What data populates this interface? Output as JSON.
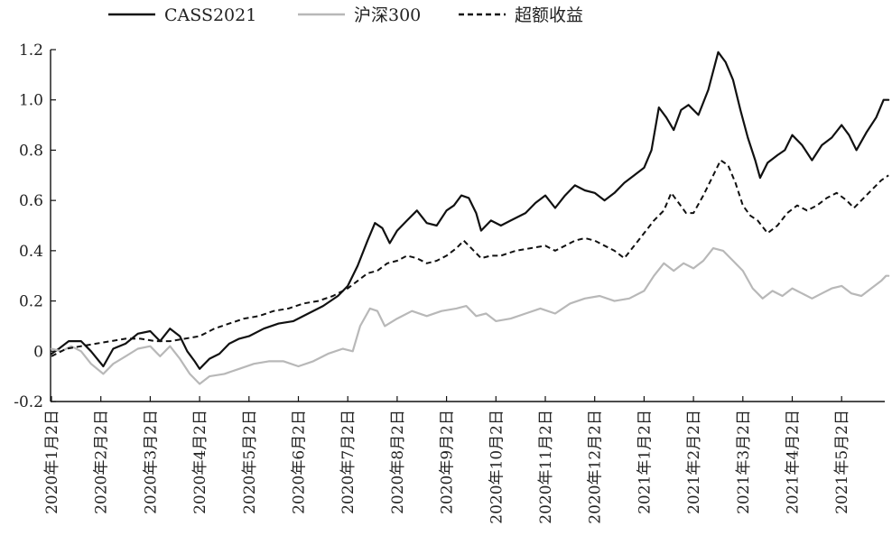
{
  "chart_data": {
    "type": "line",
    "legend": {
      "placement": "top"
    },
    "grid": false,
    "ylim": [
      -0.2,
      1.2
    ],
    "yticks": [
      "1.2",
      "1.0",
      "0.8",
      "0.6",
      "0.4",
      "0.2",
      "0",
      "-0.2"
    ],
    "ytick_values": [
      1.2,
      1.0,
      0.8,
      0.6,
      0.4,
      0.2,
      0.0,
      -0.2
    ],
    "categories": [
      "2020年1月2日",
      "2020年2月2日",
      "2020年3月2日",
      "2020年4月2日",
      "2020年5月2日",
      "2020年6月2日",
      "2020年7月2日",
      "2020年8月2日",
      "2020年9月2日",
      "2020年10月2日",
      "2020年11月2日",
      "2020年12月2日",
      "2021年1月2日",
      "2021年2月2日",
      "2021年3月2日",
      "2021年4月2日",
      "2021年5月2日"
    ],
    "x_end": 16.95,
    "series": [
      {
        "name": "CASS2021",
        "color": "#111111",
        "style": "solid",
        "points": [
          [
            0.0,
            -0.01
          ],
          [
            0.15,
            0.01
          ],
          [
            0.35,
            0.04
          ],
          [
            0.6,
            0.04
          ],
          [
            0.8,
            0.0
          ],
          [
            1.05,
            -0.06
          ],
          [
            1.25,
            0.01
          ],
          [
            1.5,
            0.03
          ],
          [
            1.75,
            0.07
          ],
          [
            2.0,
            0.08
          ],
          [
            2.2,
            0.04
          ],
          [
            2.4,
            0.09
          ],
          [
            2.6,
            0.06
          ],
          [
            2.75,
            0.0
          ],
          [
            2.9,
            -0.04
          ],
          [
            3.0,
            -0.07
          ],
          [
            3.2,
            -0.03
          ],
          [
            3.4,
            -0.01
          ],
          [
            3.6,
            0.03
          ],
          [
            3.8,
            0.05
          ],
          [
            4.0,
            0.06
          ],
          [
            4.3,
            0.09
          ],
          [
            4.6,
            0.11
          ],
          [
            4.9,
            0.12
          ],
          [
            5.2,
            0.15
          ],
          [
            5.5,
            0.18
          ],
          [
            5.8,
            0.22
          ],
          [
            6.0,
            0.26
          ],
          [
            6.2,
            0.34
          ],
          [
            6.4,
            0.44
          ],
          [
            6.55,
            0.51
          ],
          [
            6.7,
            0.49
          ],
          [
            6.85,
            0.43
          ],
          [
            7.0,
            0.48
          ],
          [
            7.2,
            0.52
          ],
          [
            7.4,
            0.56
          ],
          [
            7.6,
            0.51
          ],
          [
            7.8,
            0.5
          ],
          [
            8.0,
            0.56
          ],
          [
            8.15,
            0.58
          ],
          [
            8.3,
            0.62
          ],
          [
            8.45,
            0.61
          ],
          [
            8.6,
            0.55
          ],
          [
            8.7,
            0.48
          ],
          [
            8.9,
            0.52
          ],
          [
            9.1,
            0.5
          ],
          [
            9.3,
            0.52
          ],
          [
            9.6,
            0.55
          ],
          [
            9.8,
            0.59
          ],
          [
            10.0,
            0.62
          ],
          [
            10.2,
            0.57
          ],
          [
            10.4,
            0.62
          ],
          [
            10.6,
            0.66
          ],
          [
            10.8,
            0.64
          ],
          [
            11.0,
            0.63
          ],
          [
            11.2,
            0.6
          ],
          [
            11.4,
            0.63
          ],
          [
            11.6,
            0.67
          ],
          [
            11.8,
            0.7
          ],
          [
            12.0,
            0.73
          ],
          [
            12.15,
            0.8
          ],
          [
            12.3,
            0.97
          ],
          [
            12.45,
            0.93
          ],
          [
            12.6,
            0.88
          ],
          [
            12.75,
            0.96
          ],
          [
            12.9,
            0.98
          ],
          [
            13.1,
            0.94
          ],
          [
            13.3,
            1.04
          ],
          [
            13.5,
            1.19
          ],
          [
            13.65,
            1.15
          ],
          [
            13.8,
            1.08
          ],
          [
            13.95,
            0.96
          ],
          [
            14.1,
            0.85
          ],
          [
            14.25,
            0.76
          ],
          [
            14.35,
            0.69
          ],
          [
            14.5,
            0.75
          ],
          [
            14.7,
            0.78
          ],
          [
            14.85,
            0.8
          ],
          [
            15.0,
            0.86
          ],
          [
            15.2,
            0.82
          ],
          [
            15.4,
            0.76
          ],
          [
            15.6,
            0.82
          ],
          [
            15.8,
            0.85
          ],
          [
            16.0,
            0.9
          ],
          [
            16.15,
            0.86
          ],
          [
            16.3,
            0.8
          ],
          [
            16.5,
            0.87
          ],
          [
            16.7,
            0.93
          ],
          [
            16.85,
            1.0
          ],
          [
            16.95,
            1.0
          ]
        ]
      },
      {
        "name": "沪深300",
        "color": "#b8b8b8",
        "style": "solid",
        "points": [
          [
            0.0,
            0.01
          ],
          [
            0.2,
            0.0
          ],
          [
            0.4,
            0.02
          ],
          [
            0.6,
            0.0
          ],
          [
            0.8,
            -0.05
          ],
          [
            1.05,
            -0.09
          ],
          [
            1.25,
            -0.05
          ],
          [
            1.5,
            -0.02
          ],
          [
            1.75,
            0.01
          ],
          [
            2.0,
            0.02
          ],
          [
            2.2,
            -0.02
          ],
          [
            2.4,
            0.02
          ],
          [
            2.6,
            -0.03
          ],
          [
            2.8,
            -0.09
          ],
          [
            3.0,
            -0.13
          ],
          [
            3.2,
            -0.1
          ],
          [
            3.5,
            -0.09
          ],
          [
            3.8,
            -0.07
          ],
          [
            4.1,
            -0.05
          ],
          [
            4.4,
            -0.04
          ],
          [
            4.7,
            -0.04
          ],
          [
            5.0,
            -0.06
          ],
          [
            5.3,
            -0.04
          ],
          [
            5.6,
            -0.01
          ],
          [
            5.9,
            0.01
          ],
          [
            6.1,
            0.0
          ],
          [
            6.25,
            0.1
          ],
          [
            6.45,
            0.17
          ],
          [
            6.6,
            0.16
          ],
          [
            6.75,
            0.1
          ],
          [
            7.0,
            0.13
          ],
          [
            7.3,
            0.16
          ],
          [
            7.6,
            0.14
          ],
          [
            7.9,
            0.16
          ],
          [
            8.2,
            0.17
          ],
          [
            8.4,
            0.18
          ],
          [
            8.6,
            0.14
          ],
          [
            8.8,
            0.15
          ],
          [
            9.0,
            0.12
          ],
          [
            9.3,
            0.13
          ],
          [
            9.6,
            0.15
          ],
          [
            9.9,
            0.17
          ],
          [
            10.2,
            0.15
          ],
          [
            10.5,
            0.19
          ],
          [
            10.8,
            0.21
          ],
          [
            11.1,
            0.22
          ],
          [
            11.4,
            0.2
          ],
          [
            11.7,
            0.21
          ],
          [
            12.0,
            0.24
          ],
          [
            12.2,
            0.3
          ],
          [
            12.4,
            0.35
          ],
          [
            12.6,
            0.32
          ],
          [
            12.8,
            0.35
          ],
          [
            13.0,
            0.33
          ],
          [
            13.2,
            0.36
          ],
          [
            13.4,
            0.41
          ],
          [
            13.6,
            0.4
          ],
          [
            13.8,
            0.36
          ],
          [
            14.0,
            0.32
          ],
          [
            14.2,
            0.25
          ],
          [
            14.4,
            0.21
          ],
          [
            14.6,
            0.24
          ],
          [
            14.8,
            0.22
          ],
          [
            15.0,
            0.25
          ],
          [
            15.2,
            0.23
          ],
          [
            15.4,
            0.21
          ],
          [
            15.6,
            0.23
          ],
          [
            15.8,
            0.25
          ],
          [
            16.0,
            0.26
          ],
          [
            16.2,
            0.23
          ],
          [
            16.4,
            0.22
          ],
          [
            16.6,
            0.25
          ],
          [
            16.8,
            0.28
          ],
          [
            16.9,
            0.3
          ],
          [
            16.95,
            0.3
          ]
        ]
      },
      {
        "name": "超额收益",
        "color": "#111111",
        "style": "dashed",
        "points": [
          [
            0.0,
            -0.02
          ],
          [
            0.3,
            0.01
          ],
          [
            0.6,
            0.02
          ],
          [
            0.9,
            0.03
          ],
          [
            1.2,
            0.04
          ],
          [
            1.5,
            0.05
          ],
          [
            1.8,
            0.05
          ],
          [
            2.1,
            0.04
          ],
          [
            2.4,
            0.04
          ],
          [
            2.7,
            0.05
          ],
          [
            3.0,
            0.06
          ],
          [
            3.3,
            0.09
          ],
          [
            3.6,
            0.11
          ],
          [
            3.9,
            0.13
          ],
          [
            4.2,
            0.14
          ],
          [
            4.5,
            0.16
          ],
          [
            4.8,
            0.17
          ],
          [
            5.1,
            0.19
          ],
          [
            5.4,
            0.2
          ],
          [
            5.7,
            0.22
          ],
          [
            6.0,
            0.25
          ],
          [
            6.2,
            0.28
          ],
          [
            6.4,
            0.31
          ],
          [
            6.6,
            0.32
          ],
          [
            6.8,
            0.35
          ],
          [
            7.0,
            0.36
          ],
          [
            7.2,
            0.38
          ],
          [
            7.4,
            0.37
          ],
          [
            7.6,
            0.35
          ],
          [
            7.8,
            0.36
          ],
          [
            8.0,
            0.38
          ],
          [
            8.2,
            0.41
          ],
          [
            8.35,
            0.44
          ],
          [
            8.5,
            0.41
          ],
          [
            8.7,
            0.37
          ],
          [
            8.9,
            0.38
          ],
          [
            9.1,
            0.38
          ],
          [
            9.4,
            0.4
          ],
          [
            9.7,
            0.41
          ],
          [
            10.0,
            0.42
          ],
          [
            10.2,
            0.4
          ],
          [
            10.4,
            0.42
          ],
          [
            10.6,
            0.44
          ],
          [
            10.8,
            0.45
          ],
          [
            11.0,
            0.44
          ],
          [
            11.2,
            0.42
          ],
          [
            11.4,
            0.4
          ],
          [
            11.6,
            0.37
          ],
          [
            11.8,
            0.42
          ],
          [
            12.0,
            0.47
          ],
          [
            12.2,
            0.52
          ],
          [
            12.4,
            0.56
          ],
          [
            12.55,
            0.63
          ],
          [
            12.7,
            0.59
          ],
          [
            12.85,
            0.55
          ],
          [
            13.0,
            0.55
          ],
          [
            13.2,
            0.62
          ],
          [
            13.4,
            0.7
          ],
          [
            13.55,
            0.76
          ],
          [
            13.7,
            0.74
          ],
          [
            13.85,
            0.67
          ],
          [
            14.0,
            0.58
          ],
          [
            14.15,
            0.54
          ],
          [
            14.3,
            0.52
          ],
          [
            14.5,
            0.47
          ],
          [
            14.7,
            0.5
          ],
          [
            14.9,
            0.55
          ],
          [
            15.1,
            0.58
          ],
          [
            15.3,
            0.56
          ],
          [
            15.5,
            0.58
          ],
          [
            15.7,
            0.61
          ],
          [
            15.9,
            0.63
          ],
          [
            16.1,
            0.6
          ],
          [
            16.25,
            0.57
          ],
          [
            16.4,
            0.6
          ],
          [
            16.6,
            0.64
          ],
          [
            16.8,
            0.68
          ],
          [
            16.95,
            0.7
          ]
        ]
      }
    ]
  }
}
